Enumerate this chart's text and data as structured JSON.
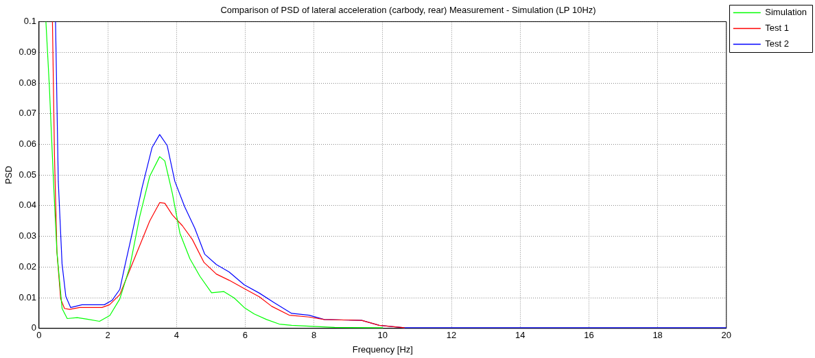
{
  "chart_data": {
    "type": "line",
    "title": "Comparison of PSD of lateral acceleration (carbody, rear) Measurement - Simulation (LP 10Hz)",
    "xlabel": "Frequency [Hz]",
    "ylabel": "PSD",
    "xlim": [
      0,
      20
    ],
    "xticks": [
      0,
      2,
      4,
      6,
      8,
      10,
      12,
      14,
      16,
      18,
      20
    ],
    "ylim": [
      0,
      0.1
    ],
    "yticks": [
      0,
      0.01,
      0.02,
      0.03,
      0.04,
      0.05,
      0.06,
      0.07,
      0.08,
      0.09,
      0.1
    ],
    "grid": true,
    "legend": "top right",
    "marker": "none",
    "line_style": "solid",
    "series": [
      {
        "name": "Simulation",
        "color": "#00ff00",
        "x": [
          0.2,
          0.3,
          0.42,
          0.52,
          0.67,
          0.82,
          1.11,
          1.4,
          1.76,
          2.06,
          2.35,
          2.64,
          2.93,
          3.22,
          3.51,
          3.66,
          3.88,
          4.1,
          4.39,
          4.68,
          5.02,
          5.38,
          5.68,
          5.97,
          6.26,
          6.62,
          6.99,
          7.35,
          8.08,
          8.6,
          10
        ],
        "values": [
          0.1,
          0.079,
          0.048,
          0.025,
          0.0065,
          0.0032,
          0.0035,
          0.003,
          0.0023,
          0.0042,
          0.0096,
          0.02,
          0.0365,
          0.0496,
          0.056,
          0.0546,
          0.044,
          0.031,
          0.0227,
          0.017,
          0.0116,
          0.012,
          0.0099,
          0.0068,
          0.0047,
          0.0029,
          0.0014,
          0.001,
          0.0006,
          0.0003,
          0.0002
        ]
      },
      {
        "name": "Test 1",
        "color": "#ff0000",
        "x": [
          0.39,
          0.45,
          0.52,
          0.63,
          0.74,
          0.89,
          1.18,
          1.83,
          2.05,
          2.35,
          2.64,
          2.93,
          3.22,
          3.51,
          3.66,
          3.88,
          4.17,
          4.46,
          4.8,
          5.16,
          5.53,
          5.97,
          6.41,
          6.77,
          7.28,
          7.86,
          8.3,
          9.39,
          9.9,
          10.63
        ],
        "values": [
          0.1,
          0.056,
          0.025,
          0.0096,
          0.0065,
          0.0062,
          0.0068,
          0.0068,
          0.0077,
          0.011,
          0.019,
          0.027,
          0.035,
          0.041,
          0.0408,
          0.037,
          0.0335,
          0.029,
          0.0215,
          0.0177,
          0.0157,
          0.013,
          0.0103,
          0.0072,
          0.0043,
          0.0037,
          0.0029,
          0.0026,
          0.001,
          0.0002
        ]
      },
      {
        "name": "Test 2",
        "color": "#0000ff",
        "x": [
          0.48,
          0.56,
          0.67,
          0.78,
          0.92,
          1.25,
          1.9,
          2.13,
          2.35,
          2.49,
          2.71,
          3.0,
          3.29,
          3.51,
          3.73,
          3.95,
          4.24,
          4.53,
          4.82,
          5.16,
          5.53,
          5.97,
          6.41,
          6.84,
          7.35,
          7.86,
          8.3,
          9.39,
          9.9,
          10.63,
          20
        ],
        "values": [
          0.1,
          0.048,
          0.021,
          0.0104,
          0.0068,
          0.0077,
          0.0077,
          0.0092,
          0.0127,
          0.02,
          0.031,
          0.046,
          0.059,
          0.0632,
          0.0596,
          0.048,
          0.0396,
          0.0327,
          0.0242,
          0.0208,
          0.0184,
          0.0142,
          0.0115,
          0.0084,
          0.0049,
          0.0043,
          0.0029,
          0.0026,
          0.001,
          0.0002,
          0.0002
        ]
      }
    ]
  }
}
